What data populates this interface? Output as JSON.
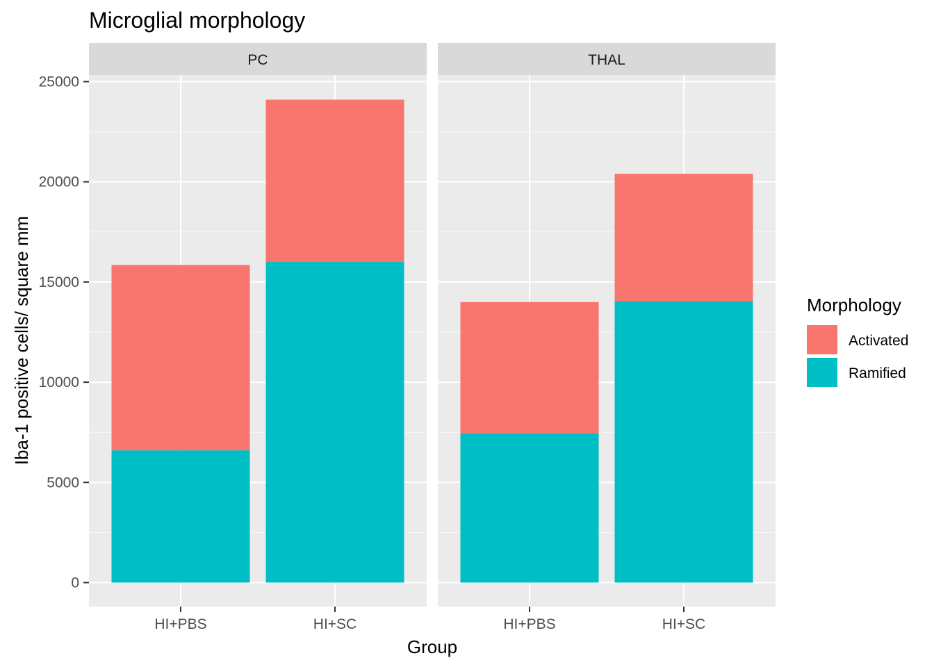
{
  "chart_data": {
    "type": "bar",
    "stacked": true,
    "title": "Microglial morphology",
    "xlabel": "Group",
    "ylabel": "Iba-1 positive cells/ square mm",
    "ylim": [
      0,
      25000
    ],
    "yticks": [
      "0",
      "5000",
      "10000",
      "15000",
      "20000",
      "25000"
    ],
    "categories": [
      "HI+PBS",
      "HI+SC"
    ],
    "legend": {
      "title": "Morphology",
      "position": "right",
      "entries": [
        "Activated",
        "Ramified"
      ]
    },
    "colors": {
      "Activated": "#F8766D",
      "Ramified": "#00BFC4"
    },
    "grid": true,
    "facets": [
      {
        "name": "PC",
        "series": [
          {
            "name": "Ramified",
            "values": [
              6600,
              16000
            ]
          },
          {
            "name": "Activated",
            "values": [
              9250,
              8100
            ]
          }
        ]
      },
      {
        "name": "THAL",
        "series": [
          {
            "name": "Ramified",
            "values": [
              7450,
              14050
            ]
          },
          {
            "name": "Activated",
            "values": [
              6550,
              6350
            ]
          }
        ]
      }
    ]
  }
}
